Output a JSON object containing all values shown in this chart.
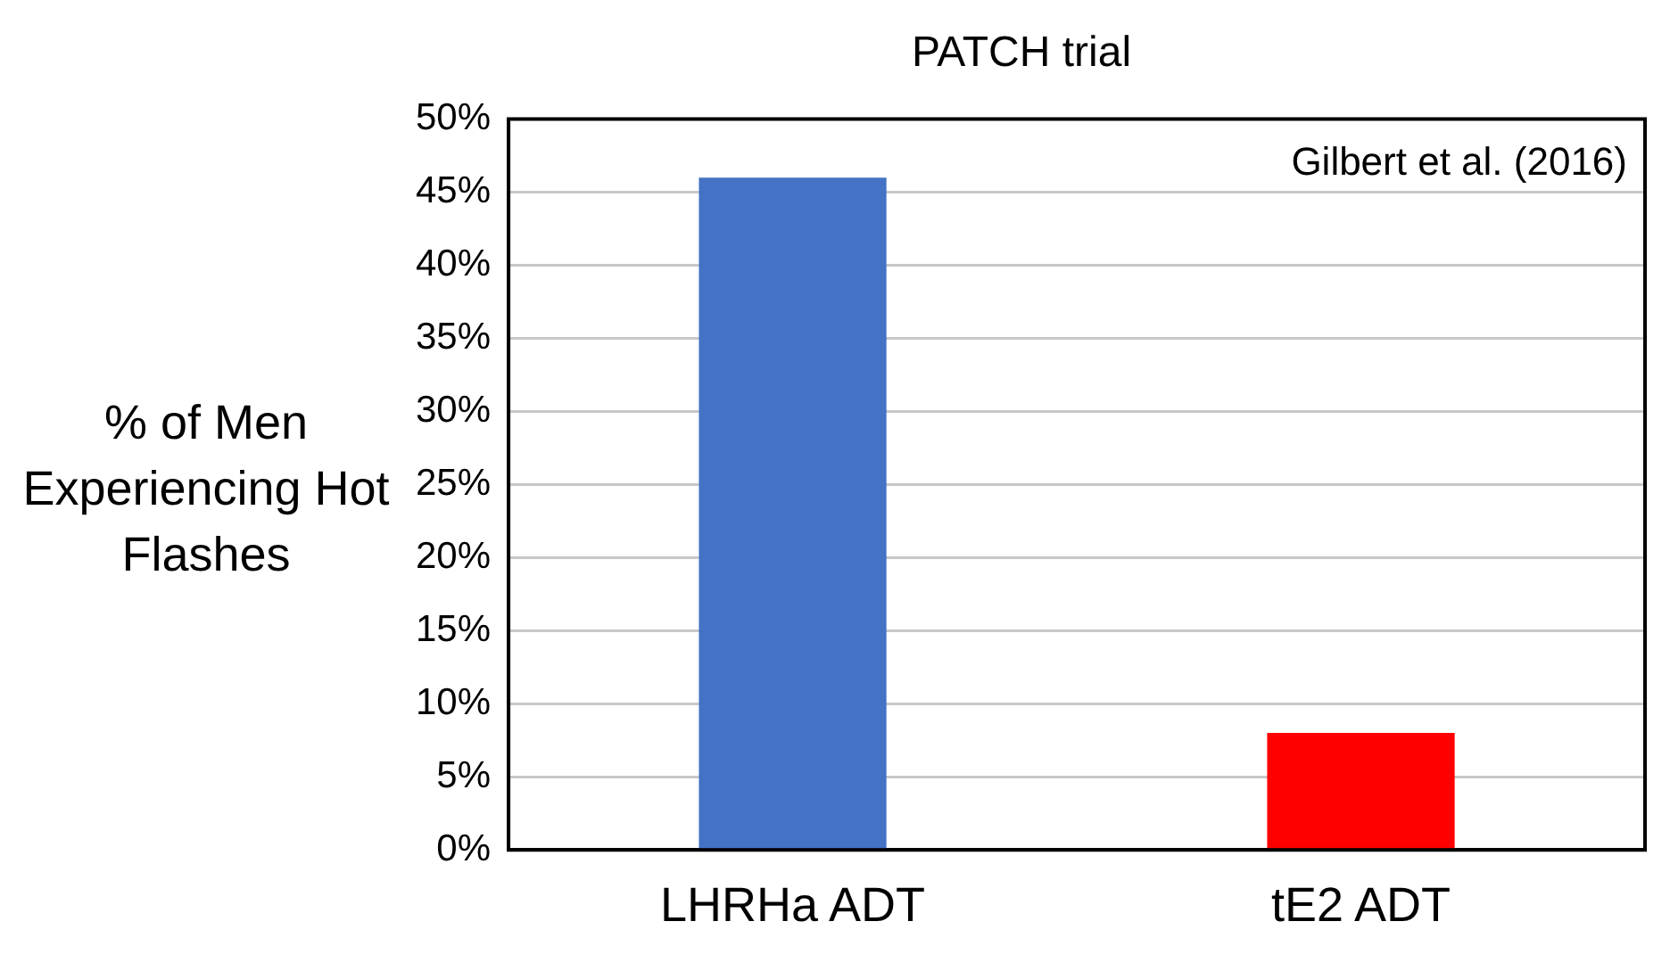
{
  "chart_data": {
    "type": "bar",
    "title": "PATCH trial",
    "ylabel": "% of Men Experiencing Hot Flashes",
    "categories": [
      "LHRHa ADT",
      "tE2 ADT"
    ],
    "values": [
      46,
      8
    ],
    "colors": [
      "#4472c4",
      "#ff0000"
    ],
    "ylim": [
      0,
      50
    ],
    "yticks": [
      {
        "value": 0,
        "label": "0%"
      },
      {
        "value": 5,
        "label": "5%"
      },
      {
        "value": 10,
        "label": "10%"
      },
      {
        "value": 15,
        "label": "15%"
      },
      {
        "value": 20,
        "label": "20%"
      },
      {
        "value": 25,
        "label": "25%"
      },
      {
        "value": 30,
        "label": "30%"
      },
      {
        "value": 35,
        "label": "35%"
      },
      {
        "value": 40,
        "label": "40%"
      },
      {
        "value": 45,
        "label": "45%"
      },
      {
        "value": 50,
        "label": "50%"
      }
    ],
    "grid": "y",
    "legend": false,
    "annotations": [
      "Gilbert et al. (2016)"
    ]
  }
}
